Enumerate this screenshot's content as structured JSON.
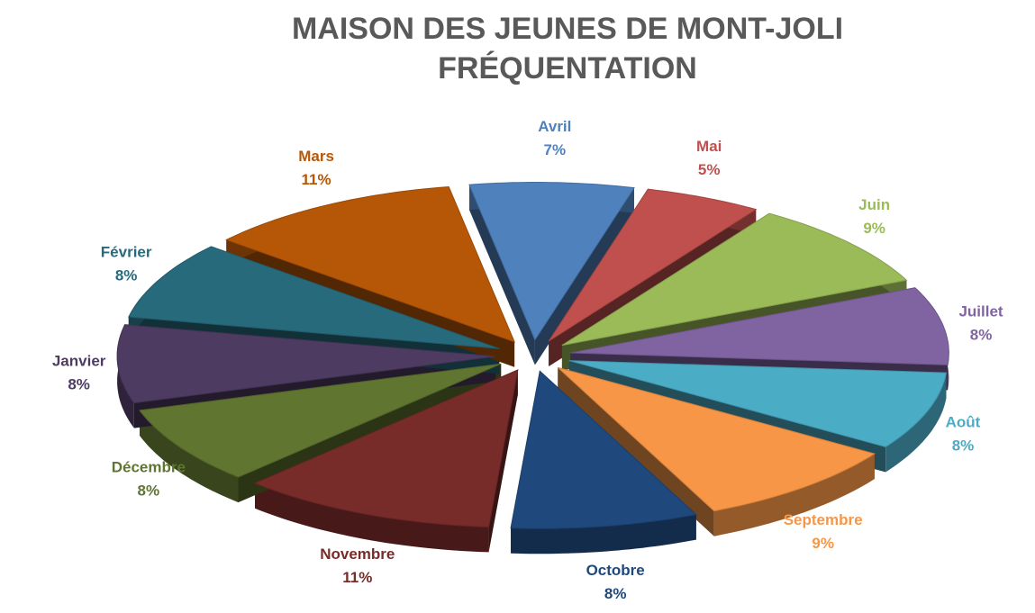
{
  "chart_data": {
    "type": "pie",
    "title": [
      "MAISON DES JEUNES DE MONT-JOLI",
      "FRÉQUENTATION"
    ],
    "categories": [
      "Avril",
      "Mai",
      "Juin",
      "Juillet",
      "Août",
      "Septembre",
      "Octobre",
      "Novembre",
      "Décembre",
      "Janvier",
      "Février",
      "Mars"
    ],
    "values": [
      7,
      5,
      9,
      8,
      8,
      9,
      8,
      11,
      8,
      8,
      8,
      11
    ],
    "value_labels": [
      "7%",
      "5%",
      "9%",
      "8%",
      "8%",
      "9%",
      "8%",
      "11%",
      "8%",
      "8%",
      "8%",
      "11%"
    ],
    "colors": [
      "#4f81bd",
      "#c0504d",
      "#9bbb59",
      "#8064a2",
      "#4bacc6",
      "#f79646",
      "#1f497d",
      "#772c2a",
      "#5f7530",
      "#4d3b62",
      "#276a7c",
      "#b65708"
    ]
  }
}
